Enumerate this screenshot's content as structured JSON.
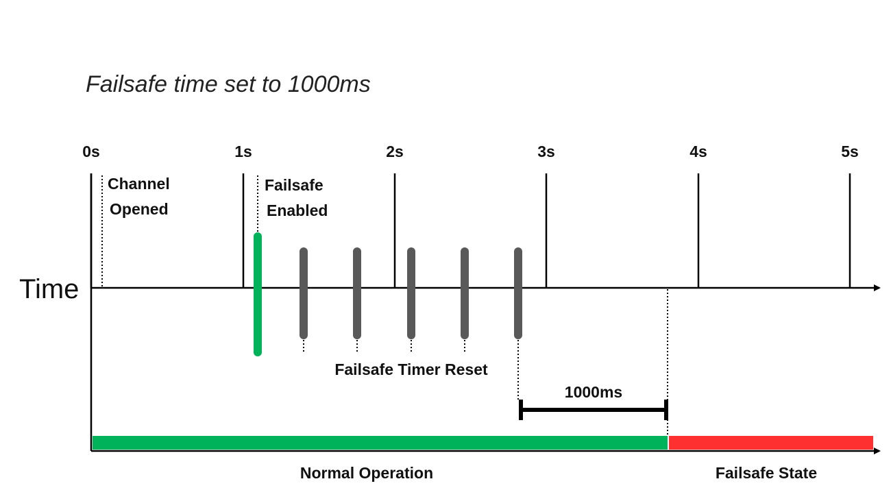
{
  "title": "Failsafe time set to 1000ms",
  "axis_label": "Time",
  "ticks": [
    "0s",
    "1s",
    "2s",
    "3s",
    "4s",
    "5s"
  ],
  "events": {
    "channel_opened": [
      "Channel",
      "Opened"
    ],
    "failsafe_enabled": [
      "Failsafe",
      "Enabled"
    ],
    "timer_reset": "Failsafe Timer Reset",
    "interval": "1000ms"
  },
  "states": {
    "normal": "Normal Operation",
    "failsafe": "Failsafe State"
  },
  "colors": {
    "enabled_marker": "#00b35a",
    "reset_marker": "#595959",
    "normal_bar": "#00b35a",
    "failsafe_bar": "#ff3030",
    "line": "#000000"
  }
}
